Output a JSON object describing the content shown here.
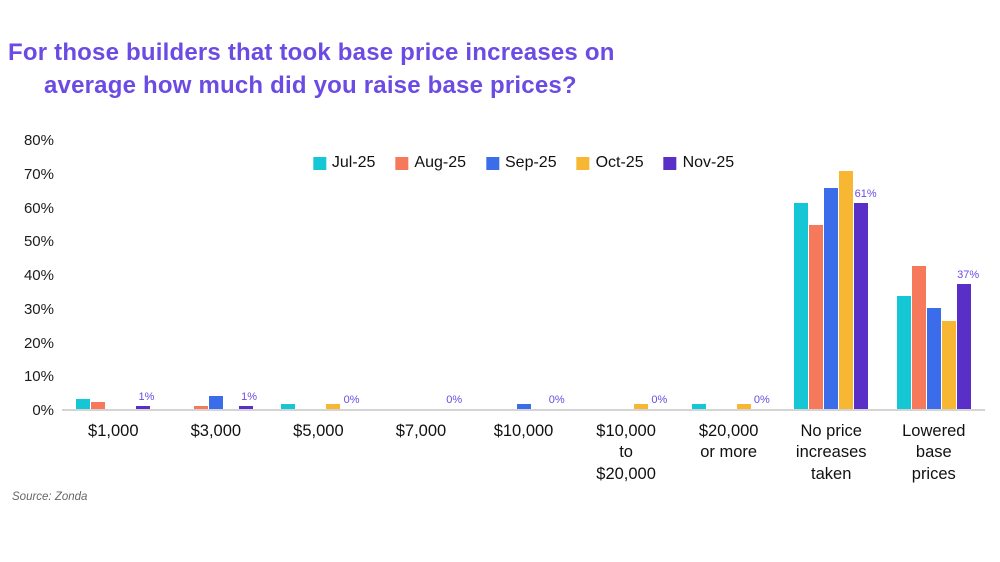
{
  "title": {
    "line1": "For those builders that took base price increases on",
    "line2": "average how much did you raise base prices?"
  },
  "source": "Source: Zonda",
  "colors": {
    "title": "#6b4be4",
    "value_label": "#6b4be4",
    "axis_text": "#1b1b1b",
    "baseline": "#d4d4d4"
  },
  "chart_data": {
    "type": "bar",
    "title": "For those builders that took base price increases on average how much did you raise base prices?",
    "categories": [
      "$1,000",
      "$3,000",
      "$5,000",
      "$7,000",
      "$10,000",
      "$10,000 to $20,000",
      "$20,000 or more",
      "No price increases taken",
      "Lowered base prices"
    ],
    "category_label_lines": [
      [
        "$1,000"
      ],
      [
        "$3,000"
      ],
      [
        "$5,000"
      ],
      [
        "$7,000"
      ],
      [
        "$10,000"
      ],
      [
        "$10,000",
        "to",
        "$20,000"
      ],
      [
        "$20,000",
        "or more"
      ],
      [
        "No price",
        "increases",
        "taken"
      ],
      [
        "Lowered",
        "base",
        "prices"
      ]
    ],
    "series": [
      {
        "name": "Jul-25",
        "color": "#15c6d4",
        "values": [
          3,
          0,
          1.5,
          0,
          0,
          0,
          1.5,
          61,
          33.5
        ]
      },
      {
        "name": "Aug-25",
        "color": "#f5795a",
        "values": [
          2,
          1,
          0,
          0,
          0,
          0,
          0,
          54.5,
          42.5
        ]
      },
      {
        "name": "Sep-25",
        "color": "#3b6ce9",
        "values": [
          0,
          4,
          0,
          0,
          1.5,
          0,
          0,
          65.5,
          30
        ]
      },
      {
        "name": "Oct-25",
        "color": "#f7b733",
        "values": [
          0,
          0,
          1.5,
          0,
          0,
          1.5,
          1.5,
          70.5,
          26
        ]
      },
      {
        "name": "Nov-25",
        "color": "#5a2fc8",
        "values": [
          1,
          1,
          0,
          0,
          0,
          0,
          0,
          61,
          37
        ]
      }
    ],
    "value_labels": {
      "series": "Nov-25",
      "labels": [
        "1%",
        "1%",
        "0%",
        "0%",
        "0%",
        "0%",
        "0%",
        "61%",
        "37%"
      ]
    },
    "ylim": [
      0,
      80
    ],
    "ytick_labels": [
      "80%",
      "70%",
      "60%",
      "50%",
      "40%",
      "30%",
      "20%",
      "10%",
      "0%"
    ],
    "grid": false,
    "legend_position": "top-center"
  }
}
